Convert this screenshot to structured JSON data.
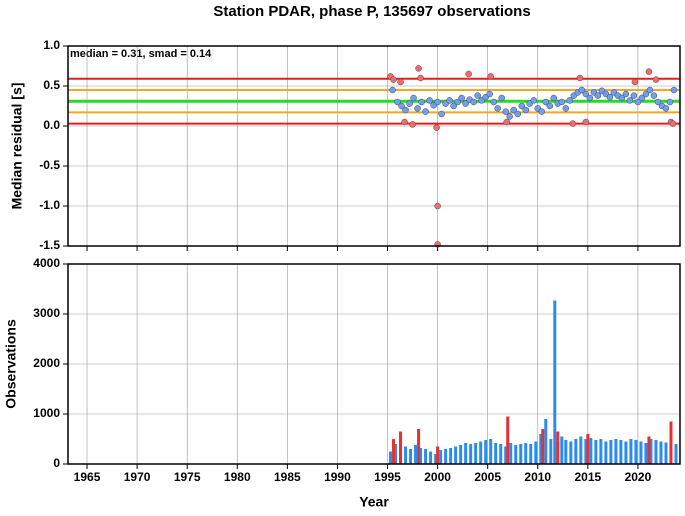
{
  "chart_data": [
    {
      "type": "scatter",
      "title": "Station PDAR, phase P, 135697 observations",
      "ylabel": "Median residual [s]",
      "annotation": "median = 0.31, smad = 0.14",
      "xlim": [
        1963.1,
        2024.2
      ],
      "xticks": [
        1965,
        1970,
        1975,
        1980,
        1985,
        1990,
        1995,
        2000,
        2005,
        2010,
        2015,
        2020
      ],
      "ylim": [
        -1.5,
        1.0
      ],
      "yticks": [
        {
          "value": -1.5,
          "label": "-1.5"
        },
        {
          "value": -1.0,
          "label": "-1.0"
        },
        -0.5,
        {
          "value": 0.0,
          "label": "0.0"
        },
        0.5,
        {
          "value": 1.0,
          "label": "1.0"
        }
      ],
      "grid": true,
      "reference_lines": [
        {
          "value": 0.59,
          "color": "#e02020"
        },
        {
          "value": 0.45,
          "color": "#f5a623"
        },
        {
          "value": 0.31,
          "color": "#22dd22"
        },
        {
          "value": 0.17,
          "color": "#f5a623"
        },
        {
          "value": 0.03,
          "color": "#e02020"
        }
      ],
      "series": [
        {
          "color": "#6f9ff0",
          "x": [
            1995.5,
            1996.0,
            1996.4,
            1996.8,
            1997.2,
            1997.6,
            1998.0,
            1998.4,
            1998.8,
            1999.2,
            1999.6,
            2000.0,
            2000.4,
            2000.8,
            2001.2,
            2001.6,
            2002.0,
            2002.4,
            2002.8,
            2003.2,
            2003.6,
            2004.0,
            2004.4,
            2004.8,
            2005.2,
            2005.6,
            2006.0,
            2006.4,
            2006.8,
            2007.2,
            2007.6,
            2008.0,
            2008.4,
            2008.8,
            2009.2,
            2009.6,
            2010.0,
            2010.4,
            2010.8,
            2011.2,
            2011.6,
            2012.0,
            2012.4,
            2012.8,
            2013.2,
            2013.6,
            2014.0,
            2014.4,
            2014.8,
            2015.2,
            2015.6,
            2016.0,
            2016.4,
            2016.8,
            2017.2,
            2017.6,
            2018.0,
            2018.4,
            2018.8,
            2019.2,
            2019.6,
            2020.0,
            2020.4,
            2020.8,
            2021.2,
            2021.6,
            2022.0,
            2022.4,
            2022.8,
            2023.2,
            2023.6
          ],
          "values": [
            0.45,
            0.3,
            0.25,
            0.2,
            0.28,
            0.35,
            0.22,
            0.3,
            0.18,
            0.32,
            0.26,
            0.3,
            0.15,
            0.28,
            0.32,
            0.25,
            0.3,
            0.35,
            0.28,
            0.33,
            0.3,
            0.38,
            0.32,
            0.36,
            0.4,
            0.3,
            0.22,
            0.35,
            0.18,
            0.12,
            0.2,
            0.15,
            0.25,
            0.2,
            0.28,
            0.32,
            0.22,
            0.18,
            0.3,
            0.25,
            0.35,
            0.28,
            0.3,
            0.22,
            0.32,
            0.38,
            0.42,
            0.45,
            0.4,
            0.35,
            0.42,
            0.38,
            0.44,
            0.4,
            0.36,
            0.42,
            0.38,
            0.35,
            0.4,
            0.32,
            0.38,
            0.3,
            0.35,
            0.4,
            0.45,
            0.38,
            0.3,
            0.25,
            0.22,
            0.3,
            0.45
          ]
        },
        {
          "color": "#f26b6b",
          "x": [
            1995.3,
            1995.6,
            1996.3,
            1996.7,
            1997.5,
            1998.1,
            1998.3,
            1999.9,
            2000.0,
            2000.0,
            2003.1,
            2005.3,
            2006.9,
            2013.5,
            2014.2,
            2014.8,
            2019.7,
            2021.1,
            2021.8,
            2023.3,
            2023.5
          ],
          "values": [
            0.62,
            0.58,
            0.55,
            0.05,
            0.02,
            0.72,
            0.6,
            -0.02,
            -1.0,
            -1.48,
            0.65,
            0.62,
            0.05,
            0.03,
            0.6,
            0.05,
            0.55,
            0.68,
            0.58,
            0.05,
            0.03
          ]
        }
      ]
    },
    {
      "type": "bar",
      "xlabel": "Year",
      "ylabel": "Observations",
      "xlim": [
        1963.1,
        2024.2
      ],
      "xticks": [
        1965,
        1970,
        1975,
        1980,
        1985,
        1990,
        1995,
        2000,
        2005,
        2010,
        2015,
        2020
      ],
      "ylim": [
        0,
        4000
      ],
      "yticks": [
        0,
        1000,
        2000,
        3000,
        4000
      ],
      "grid": true,
      "series": [
        {
          "color": "#2b8cf0",
          "x": [
            1995.3,
            1995.8,
            1996.3,
            1996.8,
            1997.3,
            1997.8,
            1998.3,
            1998.8,
            1999.3,
            1999.8,
            2000.3,
            2000.8,
            2001.3,
            2001.8,
            2002.3,
            2002.8,
            2003.3,
            2003.8,
            2004.3,
            2004.8,
            2005.3,
            2005.8,
            2006.3,
            2006.8,
            2007.3,
            2007.8,
            2008.3,
            2008.8,
            2009.3,
            2009.8,
            2010.3,
            2010.8,
            2011.3,
            2011.7,
            2012.0,
            2012.4,
            2012.8,
            2013.3,
            2013.8,
            2014.3,
            2014.8,
            2015.3,
            2015.8,
            2016.3,
            2016.8,
            2017.3,
            2017.8,
            2018.3,
            2018.8,
            2019.3,
            2019.8,
            2020.3,
            2020.8,
            2021.3,
            2021.8,
            2022.3,
            2022.8,
            2023.3,
            2023.8
          ],
          "values": [
            250,
            400,
            450,
            350,
            300,
            380,
            320,
            300,
            250,
            200,
            280,
            300,
            320,
            350,
            380,
            420,
            400,
            420,
            450,
            480,
            500,
            420,
            400,
            350,
            420,
            380,
            400,
            420,
            400,
            450,
            600,
            900,
            500,
            3270,
            450,
            550,
            480,
            450,
            500,
            550,
            500,
            520,
            480,
            500,
            450,
            480,
            500,
            480,
            450,
            500,
            480,
            450,
            420,
            500,
            480,
            450,
            430,
            420,
            400
          ]
        },
        {
          "color": "#e83030",
          "x": [
            1995.6,
            1996.3,
            1998.1,
            2000.0,
            2007.0,
            2010.5,
            2012.0,
            2015.0,
            2021.1,
            2023.3
          ],
          "values": [
            500,
            650,
            700,
            350,
            950,
            700,
            650,
            600,
            550,
            850
          ]
        }
      ]
    }
  ]
}
